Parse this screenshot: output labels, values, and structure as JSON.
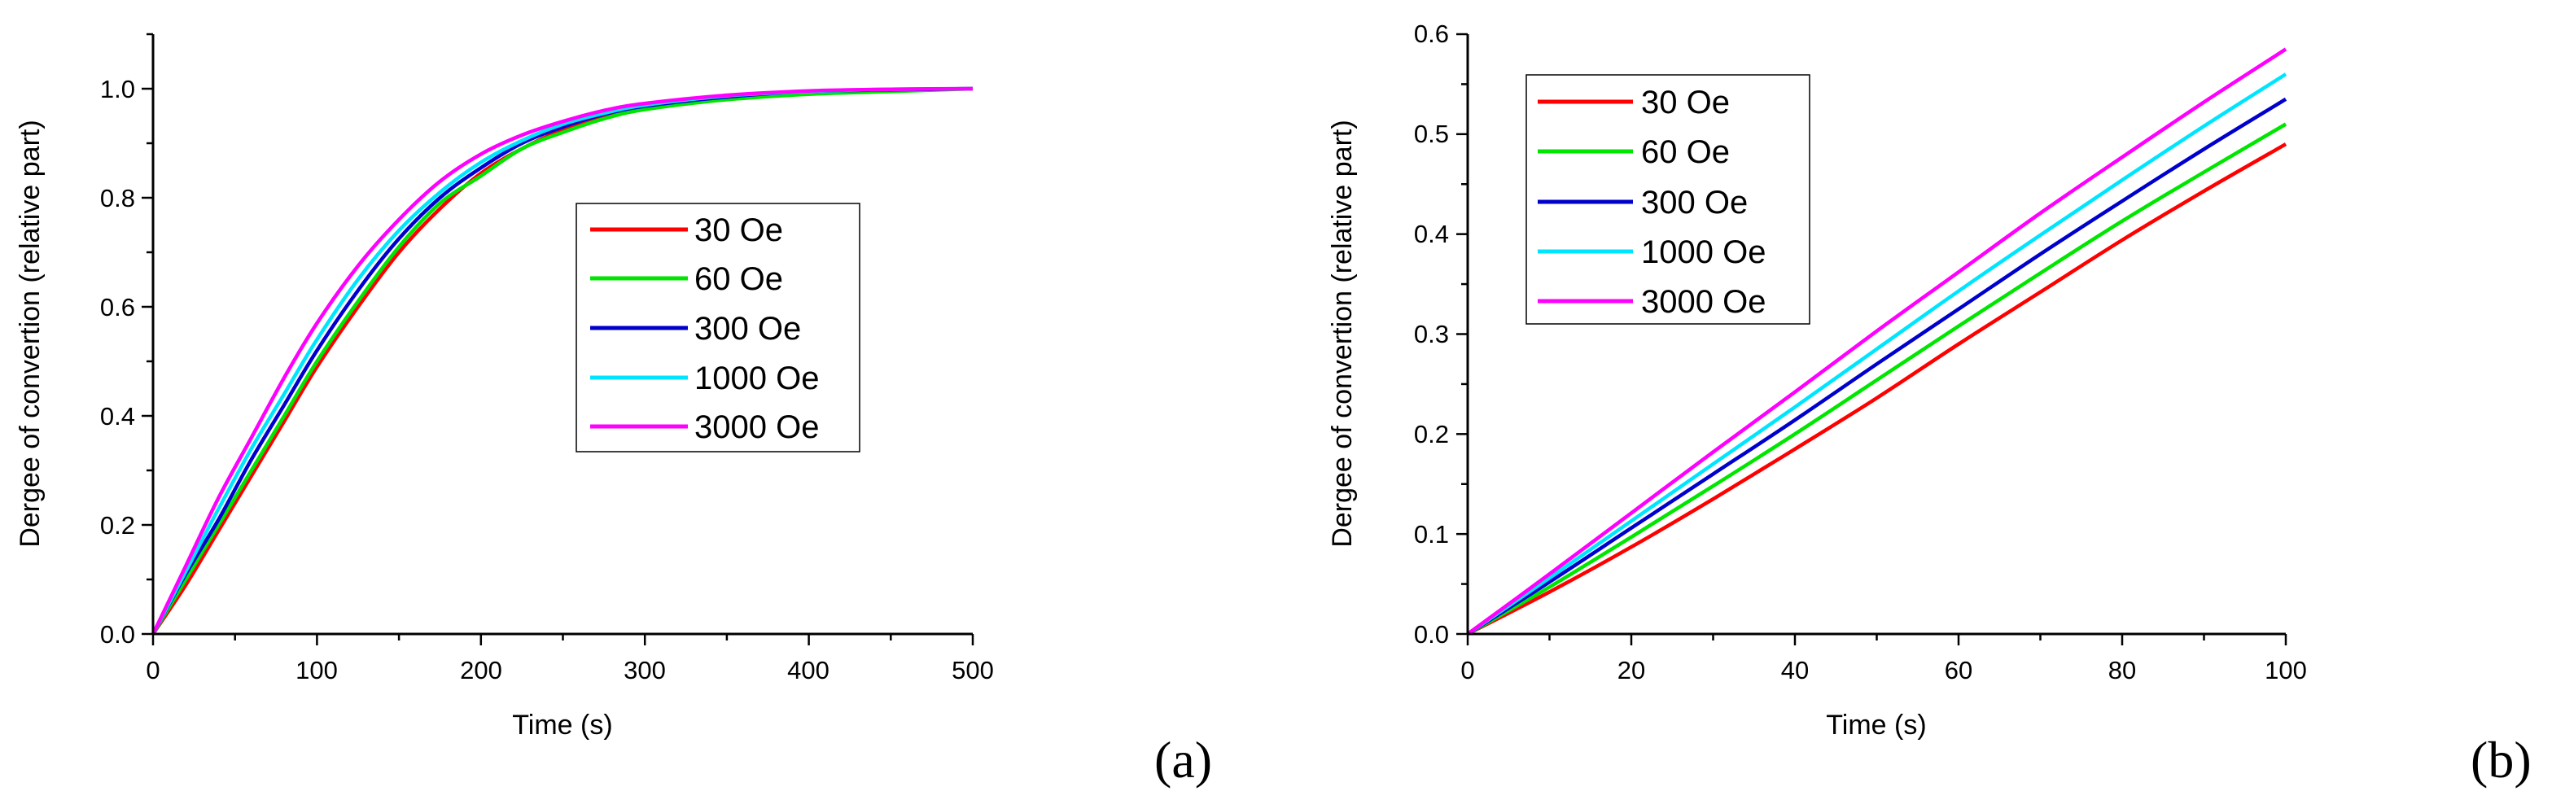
{
  "chart_data": [
    {
      "type": "line",
      "panel_label": "(a)",
      "xlabel": "Time (s)",
      "ylabel": "Dergee of convertion (relative part)",
      "xlim": [
        0,
        500
      ],
      "ylim": [
        0,
        1.1
      ],
      "xticks": [
        0,
        100,
        200,
        300,
        400,
        500
      ],
      "yticks": [
        0.0,
        0.2,
        0.4,
        0.6,
        0.8,
        1.0
      ],
      "xtick_labels": [
        "0",
        "100",
        "200",
        "300",
        "400",
        "500"
      ],
      "ytick_labels": [
        "0.0",
        "0.2",
        "0.4",
        "0.6",
        "0.8",
        "1.0"
      ],
      "grid": false,
      "legend_position": "center-right",
      "x": [
        0,
        20,
        40,
        60,
        80,
        100,
        125,
        150,
        175,
        200,
        225,
        250,
        275,
        300,
        350,
        400,
        450,
        500
      ],
      "series": [
        {
          "name": "30 Oe",
          "color": "#ff0000",
          "values": [
            0,
            0.09,
            0.19,
            0.29,
            0.39,
            0.49,
            0.6,
            0.7,
            0.78,
            0.845,
            0.89,
            0.925,
            0.95,
            0.965,
            0.983,
            0.993,
            0.998,
            1.0
          ]
        },
        {
          "name": "60 Oe",
          "color": "#00e600",
          "values": [
            0,
            0.1,
            0.2,
            0.3,
            0.4,
            0.5,
            0.61,
            0.71,
            0.79,
            0.84,
            0.89,
            0.92,
            0.945,
            0.962,
            0.98,
            0.99,
            0.995,
            1.0
          ]
        },
        {
          "name": "300 Oe",
          "color": "#0000cc",
          "values": [
            0,
            0.11,
            0.21,
            0.32,
            0.42,
            0.52,
            0.63,
            0.725,
            0.8,
            0.855,
            0.9,
            0.93,
            0.953,
            0.968,
            0.985,
            0.995,
            0.998,
            1.0
          ]
        },
        {
          "name": "1000 Oe",
          "color": "#00e5ff",
          "values": [
            0,
            0.115,
            0.23,
            0.34,
            0.44,
            0.54,
            0.65,
            0.74,
            0.81,
            0.865,
            0.905,
            0.935,
            0.955,
            0.97,
            0.987,
            0.995,
            0.999,
            1.0
          ]
        },
        {
          "name": "3000 Oe",
          "color": "#ff00ff",
          "values": [
            0,
            0.125,
            0.25,
            0.36,
            0.47,
            0.57,
            0.675,
            0.76,
            0.83,
            0.88,
            0.915,
            0.94,
            0.96,
            0.973,
            0.988,
            0.996,
            0.999,
            1.0
          ]
        }
      ]
    },
    {
      "type": "line",
      "panel_label": "(b)",
      "xlabel": "Time (s)",
      "ylabel": "Dergee of convertion (relative part)",
      "xlim": [
        0,
        100
      ],
      "ylim": [
        0,
        0.6
      ],
      "xticks": [
        0,
        20,
        40,
        60,
        80,
        100
      ],
      "yticks": [
        0.0,
        0.1,
        0.2,
        0.3,
        0.4,
        0.5,
        0.6
      ],
      "xtick_labels": [
        "0",
        "20",
        "40",
        "60",
        "80",
        "100"
      ],
      "ytick_labels": [
        "0.0",
        "0.1",
        "0.2",
        "0.3",
        "0.4",
        "0.5",
        "0.6"
      ],
      "grid": false,
      "legend_position": "top-left",
      "x": [
        0,
        10,
        20,
        30,
        40,
        50,
        60,
        70,
        80,
        90,
        100
      ],
      "series": [
        {
          "name": "30 Oe",
          "color": "#ff0000",
          "values": [
            0,
            0.042,
            0.087,
            0.135,
            0.185,
            0.236,
            0.29,
            0.342,
            0.394,
            0.443,
            0.49
          ]
        },
        {
          "name": "60 Oe",
          "color": "#00e600",
          "values": [
            0,
            0.047,
            0.097,
            0.148,
            0.2,
            0.254,
            0.308,
            0.361,
            0.413,
            0.462,
            0.51
          ]
        },
        {
          "name": "300 Oe",
          "color": "#0000cc",
          "values": [
            0,
            0.052,
            0.106,
            0.16,
            0.214,
            0.27,
            0.325,
            0.38,
            0.433,
            0.485,
            0.535
          ]
        },
        {
          "name": "1000 Oe",
          "color": "#00e5ff",
          "values": [
            0,
            0.056,
            0.113,
            0.17,
            0.227,
            0.285,
            0.343,
            0.399,
            0.454,
            0.508,
            0.56
          ]
        },
        {
          "name": "3000 Oe",
          "color": "#ff00ff",
          "values": [
            0,
            0.06,
            0.121,
            0.182,
            0.242,
            0.303,
            0.362,
            0.421,
            0.477,
            0.532,
            0.585
          ]
        }
      ]
    }
  ]
}
